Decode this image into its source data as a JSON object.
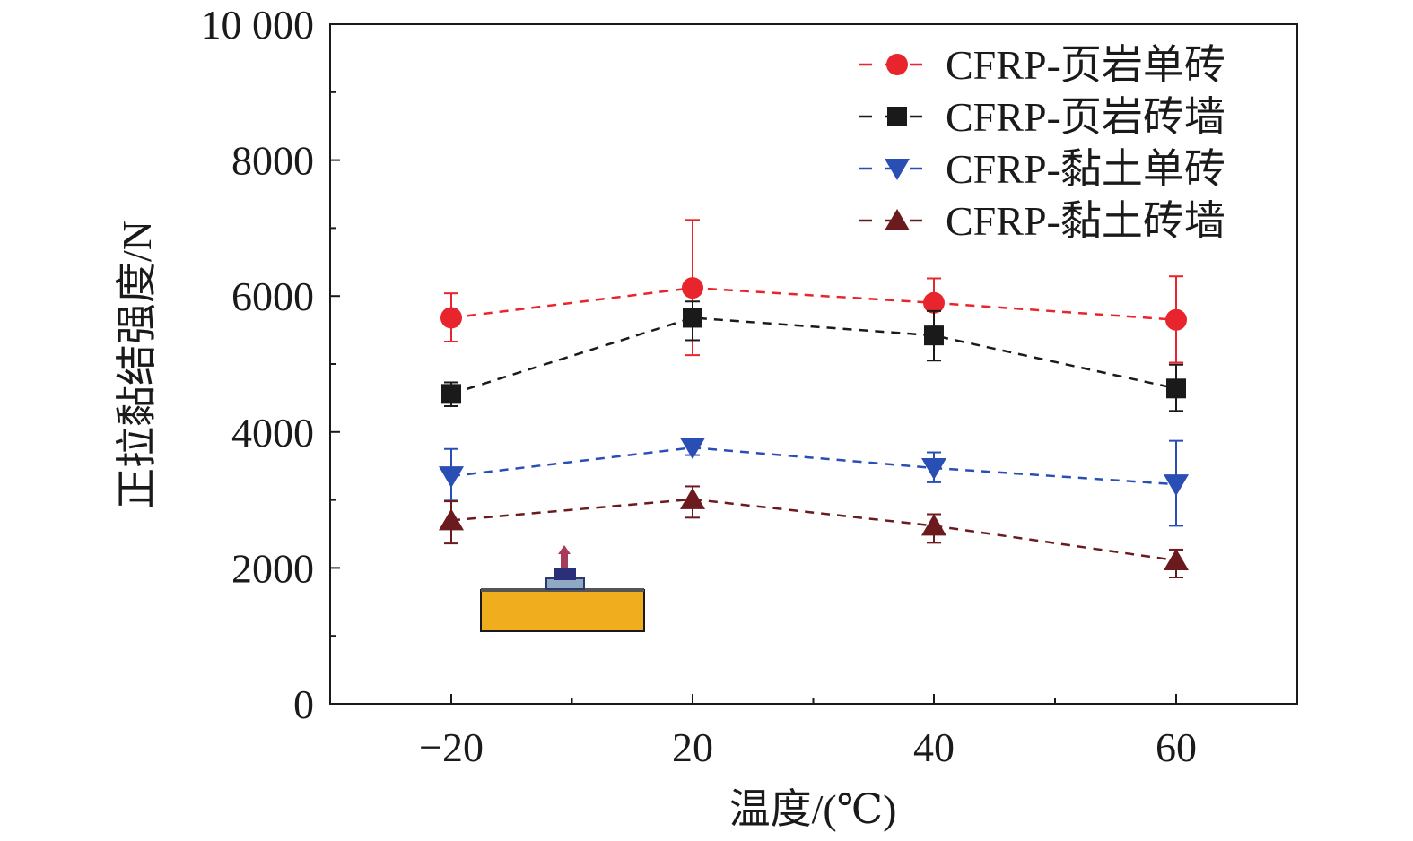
{
  "chart_data": {
    "type": "line",
    "title": "",
    "xlabel": "温度/(℃)",
    "ylabel": "正拉黏结强度/N",
    "x_categories": [
      "−20",
      "20",
      "40",
      "60"
    ],
    "ylim": [
      0,
      10000
    ],
    "y_ticks": [
      "0",
      "2000",
      "4000",
      "6000",
      "8000",
      "10 000"
    ],
    "grid": false,
    "legend_position": "top-right",
    "series": [
      {
        "name": "CFRP-页岩单砖",
        "marker": "circle",
        "color": "#e8242c",
        "values": [
          5680,
          6120,
          5900,
          5650
        ],
        "error_low": [
          5330,
          5130,
          5550,
          5020
        ],
        "error_high": [
          6040,
          7120,
          6260,
          6290
        ]
      },
      {
        "name": "CFRP-页岩砖墙",
        "marker": "square",
        "color": "#1a1a1a",
        "values": [
          4560,
          5680,
          5420,
          4640
        ],
        "error_low": [
          4380,
          5350,
          5050,
          4310
        ],
        "error_high": [
          4730,
          5920,
          5780,
          4990
        ]
      },
      {
        "name": "CFRP-黏土单砖",
        "marker": "triangle-down",
        "color": "#2a4fb4",
        "values": [
          3350,
          3770,
          3470,
          3230
        ],
        "error_low": [
          2990,
          3660,
          3260,
          2620
        ],
        "error_high": [
          3750,
          3880,
          3700,
          3870
        ]
      },
      {
        "name": "CFRP-黏土砖墙",
        "marker": "triangle-up",
        "color": "#6b1a1e",
        "values": [
          2700,
          3010,
          2620,
          2110
        ],
        "error_low": [
          2360,
          2740,
          2370,
          1860
        ],
        "error_high": [
          2980,
          3200,
          2790,
          2270
        ]
      }
    ]
  }
}
